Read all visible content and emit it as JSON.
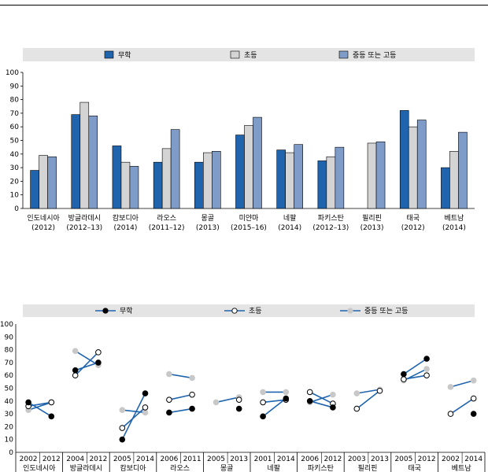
{
  "chart_data": [
    {
      "type": "bar",
      "categories": [
        "인도네시아",
        "방글라데시",
        "캄보디아",
        "라오스",
        "몽골",
        "미얀마",
        "네팔",
        "파키스탄",
        "필리핀",
        "태국",
        "베트남"
      ],
      "category_years": [
        "(2012)",
        "(2012–13)",
        "(2014)",
        "(2011–12)",
        "(2013)",
        "(2015–16)",
        "(2014)",
        "(2012–13)",
        "(2013)",
        "(2012)",
        "(2014)"
      ],
      "series": [
        {
          "name": "무학",
          "color": "#1f64ad",
          "values": [
            28,
            69,
            46,
            34,
            34,
            54,
            43,
            35,
            null,
            72,
            30
          ]
        },
        {
          "name": "초등",
          "color": "#d4d4d4",
          "values": [
            39,
            78,
            34,
            44,
            41,
            61,
            41,
            38,
            48,
            60,
            42
          ]
        },
        {
          "name": "중등 또는 고등",
          "color": "#7f9cc9",
          "values": [
            38,
            68,
            31,
            58,
            42,
            67,
            47,
            45,
            49,
            65,
            56
          ]
        }
      ],
      "ylim": [
        0,
        100
      ],
      "yticks": [
        0,
        10,
        20,
        30,
        40,
        50,
        60,
        70,
        80,
        90,
        100
      ],
      "legend_position": "top",
      "grid": false
    },
    {
      "type": "line",
      "categories": [
        "인도네시아",
        "방글라데시",
        "캄보디아",
        "라오스",
        "몽골",
        "네팔",
        "파키스탄",
        "필리핀",
        "태국",
        "베트남"
      ],
      "years": [
        [
          "2002",
          "2012"
        ],
        [
          "2004",
          "2012"
        ],
        [
          "2005",
          "2014"
        ],
        [
          "2006",
          "2011"
        ],
        [
          "2005",
          "2013"
        ],
        [
          "2001",
          "2014"
        ],
        [
          "2006",
          "2012"
        ],
        [
          "2003",
          "2013"
        ],
        [
          "2005",
          "2012"
        ],
        [
          "2002",
          "2014"
        ]
      ],
      "series": [
        {
          "name": "무학",
          "color": "#1f64ad",
          "marker": "#000000",
          "values": [
            [
              39,
              28
            ],
            [
              64,
              70
            ],
            [
              10,
              46
            ],
            [
              31,
              34
            ],
            [
              null,
              34
            ],
            [
              28,
              42
            ],
            [
              40,
              35
            ],
            [
              null,
              null
            ],
            [
              61,
              73
            ],
            [
              null,
              30
            ]
          ]
        },
        {
          "name": "초등",
          "color": "#1f64ad",
          "marker": "#ffffff",
          "values": [
            [
              36,
              39
            ],
            [
              60,
              78
            ],
            [
              19,
              35
            ],
            [
              41,
              45
            ],
            [
              null,
              41
            ],
            [
              39,
              41
            ],
            [
              47,
              38
            ],
            [
              34,
              48
            ],
            [
              57,
              60
            ],
            [
              30,
              42
            ]
          ]
        },
        {
          "name": "중등 또는 고등",
          "color": "#1f64ad",
          "marker": "#c8c8c8",
          "values": [
            [
              33,
              39
            ],
            [
              79,
              68
            ],
            [
              33,
              31
            ],
            [
              61,
              58
            ],
            [
              39,
              43
            ],
            [
              47,
              47
            ],
            [
              39,
              45
            ],
            [
              46,
              49
            ],
            [
              56,
              65
            ],
            [
              51,
              56
            ]
          ]
        }
      ],
      "ylim": [
        0,
        100
      ],
      "yticks": [
        0,
        10,
        20,
        30,
        40,
        50,
        60,
        70,
        80,
        90,
        100
      ],
      "legend_position": "top",
      "grid": false
    }
  ]
}
